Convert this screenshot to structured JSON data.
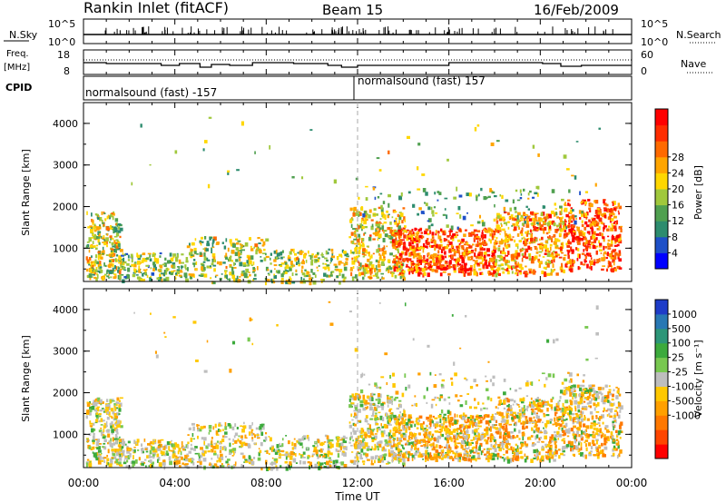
{
  "header": {
    "station": "Rankin Inlet (fitACF)",
    "beam": "Beam 15",
    "date": "16/Feb/2009"
  },
  "top_panels": {
    "nsky": {
      "label": "N.Sky",
      "ticks": [
        "10^5",
        "10^0"
      ],
      "right_ticks": [
        "10^5",
        "10^0"
      ],
      "right_label": "N.Search"
    },
    "freq": {
      "label_line1": "Freq.",
      "label_line2": "[MHz]",
      "ticks": [
        "18",
        "8"
      ],
      "right_ticks": [
        "60",
        "0"
      ],
      "right_label": "Nave"
    },
    "cpid": {
      "label": "CPID",
      "segments": [
        {
          "text": "normalsound (fast) -157",
          "start_hour": 0
        },
        {
          "text": "normalsound (fast) 157",
          "start_hour": 12
        }
      ]
    }
  },
  "chart_data": [
    {
      "type": "heatmap",
      "name": "power-panel",
      "ylabel": "Slant Range [km]",
      "xlabel": "",
      "ylim": [
        200,
        4500
      ],
      "x_range_hours": [
        0,
        24
      ],
      "yticks": [
        "1000",
        "2000",
        "3000",
        "4000"
      ],
      "colorbar": {
        "label": "Power [dB]",
        "ticks": [
          "4",
          "8",
          "12",
          "16",
          "20",
          "24",
          "28"
        ],
        "colors": [
          "#0000ff",
          "#1e50c8",
          "#2d8c6e",
          "#50a050",
          "#a0c83c",
          "#ffd700",
          "#ffa500",
          "#ff6a00",
          "#ff2d00",
          "#ff0000"
        ]
      }
    },
    {
      "type": "heatmap",
      "name": "velocity-panel",
      "ylabel": "Slant Range [km]",
      "xlabel": "Time UT",
      "ylim": [
        200,
        4500
      ],
      "x_range_hours": [
        0,
        24
      ],
      "yticks": [
        "1000",
        "2000",
        "3000",
        "4000"
      ],
      "xticks": [
        "00:00",
        "04:00",
        "08:00",
        "12:00",
        "16:00",
        "20:00",
        "00:00"
      ],
      "colorbar": {
        "label": "Velocity [m s⁻¹]",
        "ticks": [
          "1000",
          "500",
          "100",
          "25",
          "-25",
          "-100",
          "-500",
          "-1000"
        ],
        "colors": [
          "#1e3cc8",
          "#2878b4",
          "#2d9678",
          "#3caa3c",
          "#78c850",
          "#bebebe",
          "#ffc800",
          "#ffa000",
          "#ff7800",
          "#ff4600",
          "#ff0000"
        ]
      }
    }
  ],
  "time_axis": {
    "label": "Time UT",
    "ticks": [
      "00:00",
      "04:00",
      "08:00",
      "12:00",
      "16:00",
      "20:00",
      "00:00"
    ]
  }
}
